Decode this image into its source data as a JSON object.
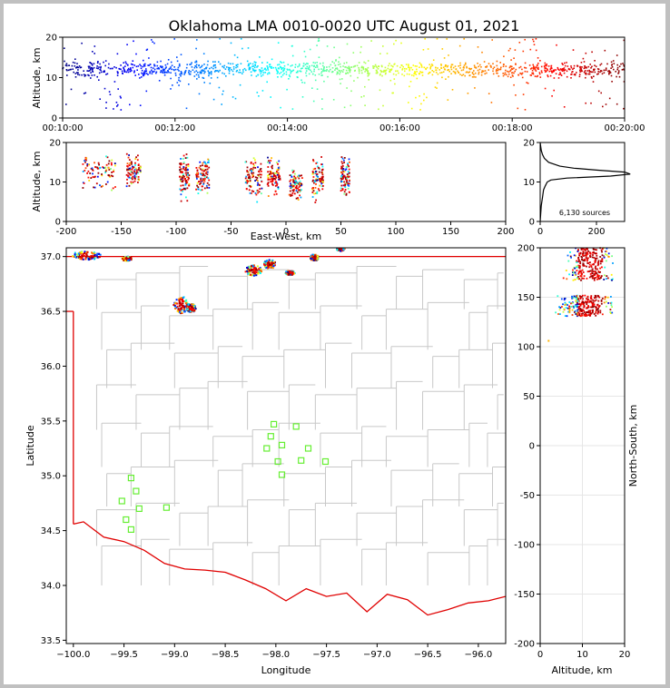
{
  "chart_data": [
    {
      "panel": "altitude-vs-time",
      "type": "scatter",
      "title": "Oklahoma LMA 0010-0020 UTC August 01, 2021",
      "xlabel": "",
      "ylabel": "Altitude, km",
      "xlim": [
        "00:10:00",
        "00:20:00"
      ],
      "ylim": [
        0,
        20
      ],
      "xticks": [
        "00:10:00",
        "00:12:00",
        "00:14:00",
        "00:16:00",
        "00:18:00",
        "00:20:00"
      ],
      "yticks": [
        0,
        10,
        20
      ],
      "color_encoding": "time (blue early to red late)",
      "altitude_core_km": [
        9,
        15
      ]
    },
    {
      "panel": "altitude-vs-east-west",
      "type": "scatter",
      "xlabel": "East-West, km",
      "ylabel": "Altitude, km",
      "xlim": [
        -200,
        200
      ],
      "ylim": [
        0,
        20
      ],
      "xticks": [
        -200,
        -150,
        -100,
        -50,
        0,
        50,
        100,
        150,
        200
      ],
      "yticks": [
        0,
        10,
        20
      ],
      "clusters": [
        {
          "x": [
            -185,
            -155
          ],
          "alt": [
            5,
            20
          ]
        },
        {
          "x": [
            -145,
            -132
          ],
          "alt": [
            7,
            19
          ]
        },
        {
          "x": [
            -97,
            -88
          ],
          "alt": [
            3,
            20
          ]
        },
        {
          "x": [
            -82,
            -70
          ],
          "alt": [
            4,
            19
          ]
        },
        {
          "x": [
            -37,
            -22
          ],
          "alt": [
            3,
            19
          ]
        },
        {
          "x": [
            -17,
            -5
          ],
          "alt": [
            4,
            19
          ]
        },
        {
          "x": [
            3,
            15
          ],
          "alt": [
            4,
            15
          ]
        },
        {
          "x": [
            24,
            34
          ],
          "alt": [
            3,
            19
          ]
        },
        {
          "x": [
            50,
            58
          ],
          "alt": [
            4,
            19
          ]
        }
      ]
    },
    {
      "panel": "source-altitude-histogram",
      "type": "line",
      "xlim": [
        0,
        300
      ],
      "ylim": [
        0,
        20
      ],
      "xticks": [
        0,
        200
      ],
      "yticks": [
        0,
        10,
        20
      ],
      "annotation": "6,130 sources",
      "profile": {
        "alt": [
          0,
          2,
          4,
          6,
          8,
          9,
          10,
          10.5,
          11,
          11.5,
          12,
          12.5,
          13,
          13.5,
          14,
          15,
          16,
          17,
          18,
          19,
          20
        ],
        "count": [
          0,
          2,
          4,
          8,
          12,
          18,
          25,
          38,
          95,
          250,
          320,
          300,
          200,
          120,
          70,
          30,
          15,
          8,
          4,
          2,
          0
        ]
      }
    },
    {
      "panel": "plan-view-map",
      "type": "scatter",
      "xlabel": "Longitude",
      "ylabel": "Latitude",
      "xlim": [
        -100.07,
        -95.73
      ],
      "ylim": [
        33.47,
        37.08
      ],
      "xticks": [
        -100.0,
        -99.5,
        -99.0,
        -98.5,
        -98.0,
        -97.5,
        -97.0,
        -96.5,
        -96.0
      ],
      "yticks": [
        33.5,
        34.0,
        34.5,
        35.0,
        35.5,
        36.0,
        36.5,
        37.0
      ],
      "xticklabels": [
        "−100.0",
        "−99.5",
        "−99.0",
        "−98.5",
        "−98.0",
        "−97.5",
        "−97.0",
        "−96.5",
        "−96.0"
      ],
      "yticklabels": [
        "33.5",
        "34.0",
        "34.5",
        "35.0",
        "35.5",
        "36.0",
        "36.5",
        "37.0"
      ],
      "source_clusters": [
        {
          "lon": -99.87,
          "lat": 37.01,
          "rx": 0.14,
          "ry": 0.04
        },
        {
          "lon": -99.47,
          "lat": 36.98,
          "rx": 0.05,
          "ry": 0.02
        },
        {
          "lon": -98.94,
          "lat": 36.56,
          "rx": 0.07,
          "ry": 0.08
        },
        {
          "lon": -98.84,
          "lat": 36.53,
          "rx": 0.05,
          "ry": 0.04
        },
        {
          "lon": -98.22,
          "lat": 36.87,
          "rx": 0.08,
          "ry": 0.05
        },
        {
          "lon": -98.06,
          "lat": 36.93,
          "rx": 0.06,
          "ry": 0.04
        },
        {
          "lon": -97.86,
          "lat": 36.85,
          "rx": 0.05,
          "ry": 0.02
        },
        {
          "lon": -97.62,
          "lat": 36.99,
          "rx": 0.04,
          "ry": 0.03
        },
        {
          "lon": -97.36,
          "lat": 37.07,
          "rx": 0.04,
          "ry": 0.02
        }
      ],
      "stations": [
        {
          "lon": -98.02,
          "lat": 35.47
        },
        {
          "lon": -97.8,
          "lat": 35.45
        },
        {
          "lon": -98.05,
          "lat": 35.36
        },
        {
          "lon": -98.09,
          "lat": 35.25
        },
        {
          "lon": -97.94,
          "lat": 35.28
        },
        {
          "lon": -97.68,
          "lat": 35.25
        },
        {
          "lon": -97.98,
          "lat": 35.13
        },
        {
          "lon": -97.75,
          "lat": 35.14
        },
        {
          "lon": -97.51,
          "lat": 35.13
        },
        {
          "lon": -97.94,
          "lat": 35.01
        },
        {
          "lon": -99.43,
          "lat": 34.98
        },
        {
          "lon": -99.38,
          "lat": 34.86
        },
        {
          "lon": -99.52,
          "lat": 34.77
        },
        {
          "lon": -99.35,
          "lat": 34.7
        },
        {
          "lon": -99.08,
          "lat": 34.71
        },
        {
          "lon": -99.48,
          "lat": 34.6
        },
        {
          "lon": -99.43,
          "lat": 34.51
        }
      ],
      "state_border_north_lat": 37.0,
      "panhandle_lon": -100.0,
      "red_river": {
        "lon": [
          -100.0,
          -99.9,
          -99.7,
          -99.5,
          -99.3,
          -99.1,
          -98.9,
          -98.7,
          -98.5,
          -98.3,
          -98.1,
          -97.9,
          -97.7,
          -97.5,
          -97.3,
          -97.1,
          -96.9,
          -96.7,
          -96.5,
          -96.3,
          -96.1,
          -95.9,
          -95.73
        ],
        "lat": [
          34.56,
          34.58,
          34.44,
          34.4,
          34.32,
          34.2,
          34.15,
          34.14,
          34.12,
          34.05,
          33.97,
          33.86,
          33.97,
          33.9,
          33.93,
          33.76,
          33.92,
          33.87,
          33.73,
          33.78,
          33.84,
          33.86,
          33.9
        ]
      }
    },
    {
      "panel": "north-south-vs-altitude",
      "type": "scatter",
      "xlabel": "Altitude, km",
      "ylabel": "North-South, km",
      "xlim": [
        0,
        20
      ],
      "ylim": [
        -200,
        200
      ],
      "xticks": [
        0,
        10,
        20
      ],
      "yticks": [
        -200,
        -150,
        -100,
        -50,
        0,
        50,
        100,
        150,
        200
      ],
      "clusters": [
        {
          "y": [
            167,
            200
          ],
          "alt": [
            3,
            20
          ]
        },
        {
          "y": [
            131,
            152
          ],
          "alt": [
            1,
            20
          ]
        }
      ],
      "outliers": [
        {
          "y": 106,
          "alt": 2
        }
      ]
    }
  ]
}
